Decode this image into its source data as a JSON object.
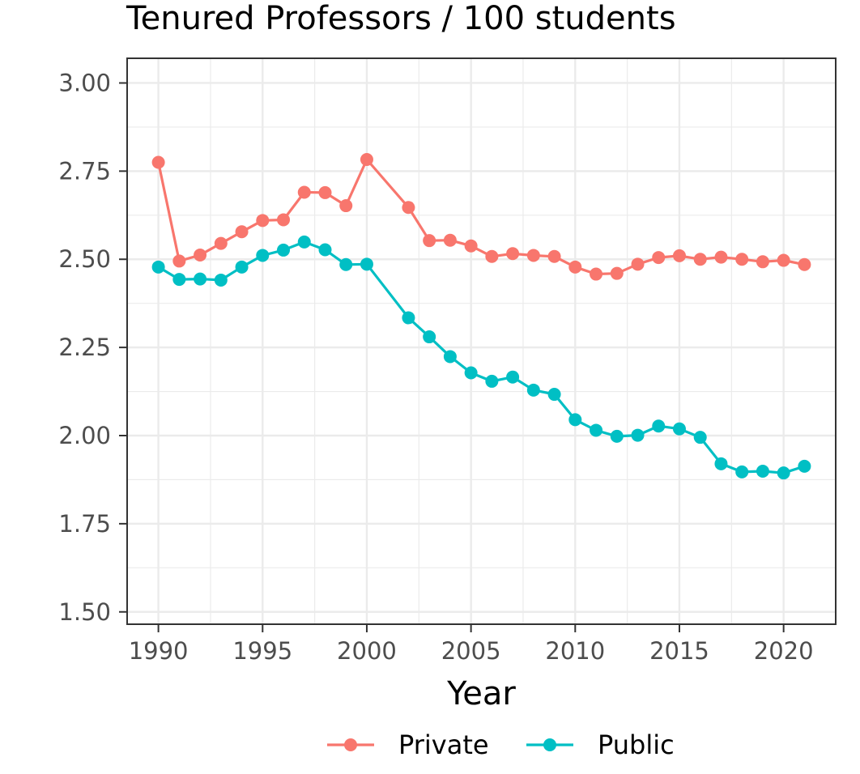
{
  "chart_data": {
    "type": "line",
    "title": "Tenured Professors / 100 students",
    "xlabel": "Year",
    "ylabel": "",
    "xlim": [
      1988.5,
      2022.5
    ],
    "ylim": [
      1.465,
      3.07
    ],
    "x_ticks": [
      1990,
      1995,
      2000,
      2005,
      2010,
      2015,
      2020
    ],
    "x_tick_labels": [
      "1990",
      "1995",
      "2000",
      "2005",
      "2010",
      "2015",
      "2020"
    ],
    "y_ticks": [
      1.5,
      1.75,
      2.0,
      2.25,
      2.5,
      2.75,
      3.0
    ],
    "y_tick_labels": [
      "1.50",
      "1.75",
      "2.00",
      "2.25",
      "2.50",
      "2.75",
      "3.00"
    ],
    "grid": true,
    "legend_position": "bottom",
    "series": [
      {
        "name": "Private",
        "color": "#F8766D",
        "x": [
          1990,
          1991,
          1992,
          1993,
          1994,
          1995,
          1996,
          1997,
          1998,
          1999,
          2000,
          2002,
          2003,
          2004,
          2005,
          2006,
          2007,
          2008,
          2009,
          2010,
          2011,
          2012,
          2013,
          2014,
          2015,
          2016,
          2017,
          2018,
          2019,
          2020,
          2021
        ],
        "values": [
          2.775,
          2.495,
          2.512,
          2.545,
          2.578,
          2.61,
          2.612,
          2.69,
          2.689,
          2.652,
          2.783,
          2.647,
          2.553,
          2.554,
          2.538,
          2.508,
          2.516,
          2.511,
          2.508,
          2.478,
          2.458,
          2.46,
          2.486,
          2.505,
          2.51,
          2.5,
          2.506,
          2.5,
          2.493,
          2.497,
          2.485
        ]
      },
      {
        "name": "Public",
        "color": "#00BFC4",
        "x": [
          1990,
          1991,
          1992,
          1993,
          1994,
          1995,
          1996,
          1997,
          1998,
          1999,
          2000,
          2002,
          2003,
          2004,
          2005,
          2006,
          2007,
          2008,
          2009,
          2010,
          2011,
          2012,
          2013,
          2014,
          2015,
          2016,
          2017,
          2018,
          2019,
          2020,
          2021
        ],
        "values": [
          2.478,
          2.443,
          2.444,
          2.441,
          2.478,
          2.511,
          2.526,
          2.549,
          2.527,
          2.485,
          2.486,
          2.334,
          2.28,
          2.224,
          2.178,
          2.154,
          2.166,
          2.129,
          2.117,
          2.045,
          2.015,
          1.998,
          2.001,
          2.027,
          2.019,
          1.995,
          1.92,
          1.897,
          1.899,
          1.894,
          1.913
        ]
      }
    ]
  }
}
